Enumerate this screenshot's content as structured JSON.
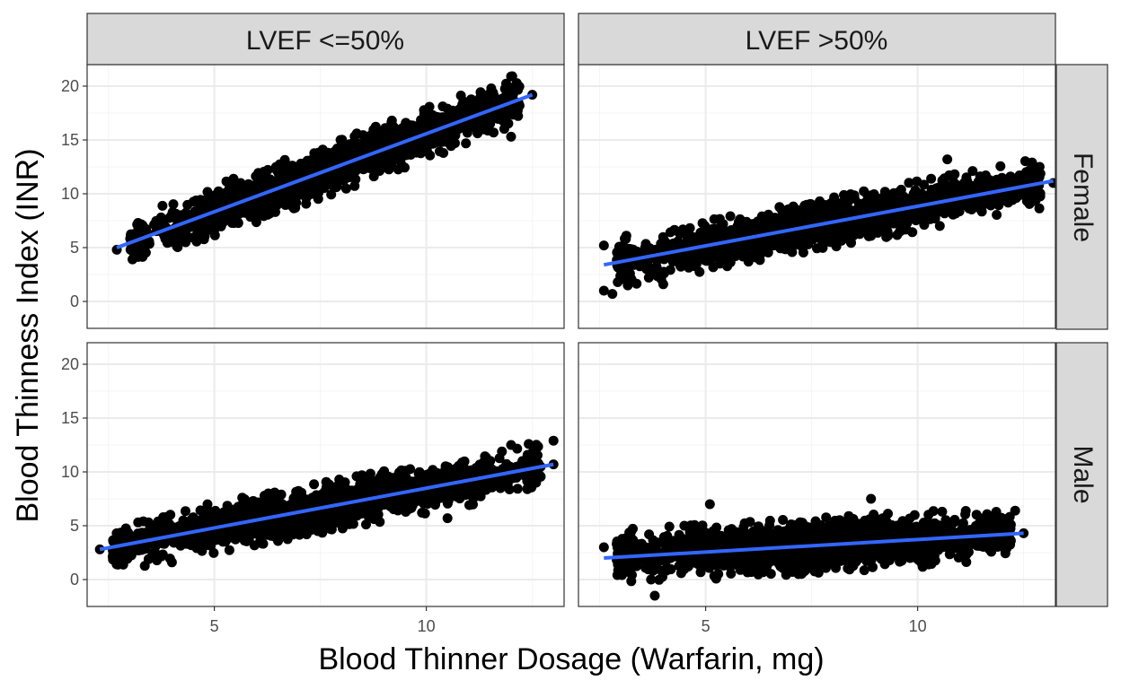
{
  "chart_data": {
    "type": "scatter",
    "xlabel": "Blood Thinner Dosage (Warfarin, mg)",
    "ylabel": "Blood Thinness Index (INR)",
    "xlim": [
      2.0,
      13.25
    ],
    "ylim": [
      -2.5,
      22.0
    ],
    "xticks": [
      5,
      10
    ],
    "yticks": [
      0,
      5,
      10,
      15,
      20
    ],
    "column_facets": [
      "LVEF <=50%",
      "LVEF >50%"
    ],
    "row_facets": [
      "Female",
      "Male"
    ],
    "grid": true,
    "trend_line": "linear fit, blue",
    "colors": {
      "points": "#000000",
      "trend_line": "#3366FF",
      "strip_fill": "#D9D9D9",
      "grid": "#EBEBEB"
    },
    "panels": [
      {
        "col": "LVEF <=50%",
        "row": "Female",
        "x_range": [
          2.7,
          12.5
        ],
        "fit": {
          "x": [
            2.7,
            12.5
          ],
          "y": [
            5.0,
            19.2
          ]
        },
        "n_points": 1800,
        "spread": 1.5,
        "seed": 11,
        "extreme_points": [
          {
            "x": 2.7,
            "y": 4.8
          },
          {
            "x": 12.0,
            "y": 20.9
          },
          {
            "x": 12.0,
            "y": 15.3
          },
          {
            "x": 12.5,
            "y": 19.2
          },
          {
            "x": 11.8,
            "y": 16.8
          }
        ]
      },
      {
        "col": "LVEF >50%",
        "row": "Female",
        "x_range": [
          2.6,
          13.2
        ],
        "fit": {
          "x": [
            2.6,
            13.2
          ],
          "y": [
            3.4,
            11.2
          ]
        },
        "n_points": 1800,
        "spread": 1.45,
        "seed": 23,
        "extreme_points": [
          {
            "x": 2.6,
            "y": 1.0
          },
          {
            "x": 2.8,
            "y": 0.7
          },
          {
            "x": 2.6,
            "y": 5.2
          },
          {
            "x": 13.2,
            "y": 11.0
          },
          {
            "x": 10.7,
            "y": 13.2
          },
          {
            "x": 4.0,
            "y": 1.6
          }
        ]
      },
      {
        "col": "LVEF <=50%",
        "row": "Male",
        "x_range": [
          2.3,
          13.0
        ],
        "fit": {
          "x": [
            2.3,
            13.0
          ],
          "y": [
            2.8,
            10.7
          ]
        },
        "n_points": 1800,
        "spread": 1.45,
        "seed": 37,
        "extreme_points": [
          {
            "x": 2.3,
            "y": 2.8
          },
          {
            "x": 13.0,
            "y": 12.9
          },
          {
            "x": 13.0,
            "y": 10.7
          },
          {
            "x": 12.0,
            "y": 12.5
          },
          {
            "x": 10.5,
            "y": 5.7
          },
          {
            "x": 4.0,
            "y": 1.6
          }
        ]
      },
      {
        "col": "LVEF >50%",
        "row": "Male",
        "x_range": [
          2.6,
          12.5
        ],
        "fit": {
          "x": [
            2.6,
            12.5
          ],
          "y": [
            2.0,
            4.3
          ]
        },
        "n_points": 1800,
        "spread": 1.6,
        "seed": 53,
        "extreme_points": [
          {
            "x": 2.6,
            "y": 3.0
          },
          {
            "x": 3.8,
            "y": -1.5
          },
          {
            "x": 12.5,
            "y": 4.3
          },
          {
            "x": 5.1,
            "y": 7.0
          },
          {
            "x": 8.9,
            "y": 7.5
          },
          {
            "x": 12.3,
            "y": 6.4
          }
        ]
      }
    ]
  }
}
